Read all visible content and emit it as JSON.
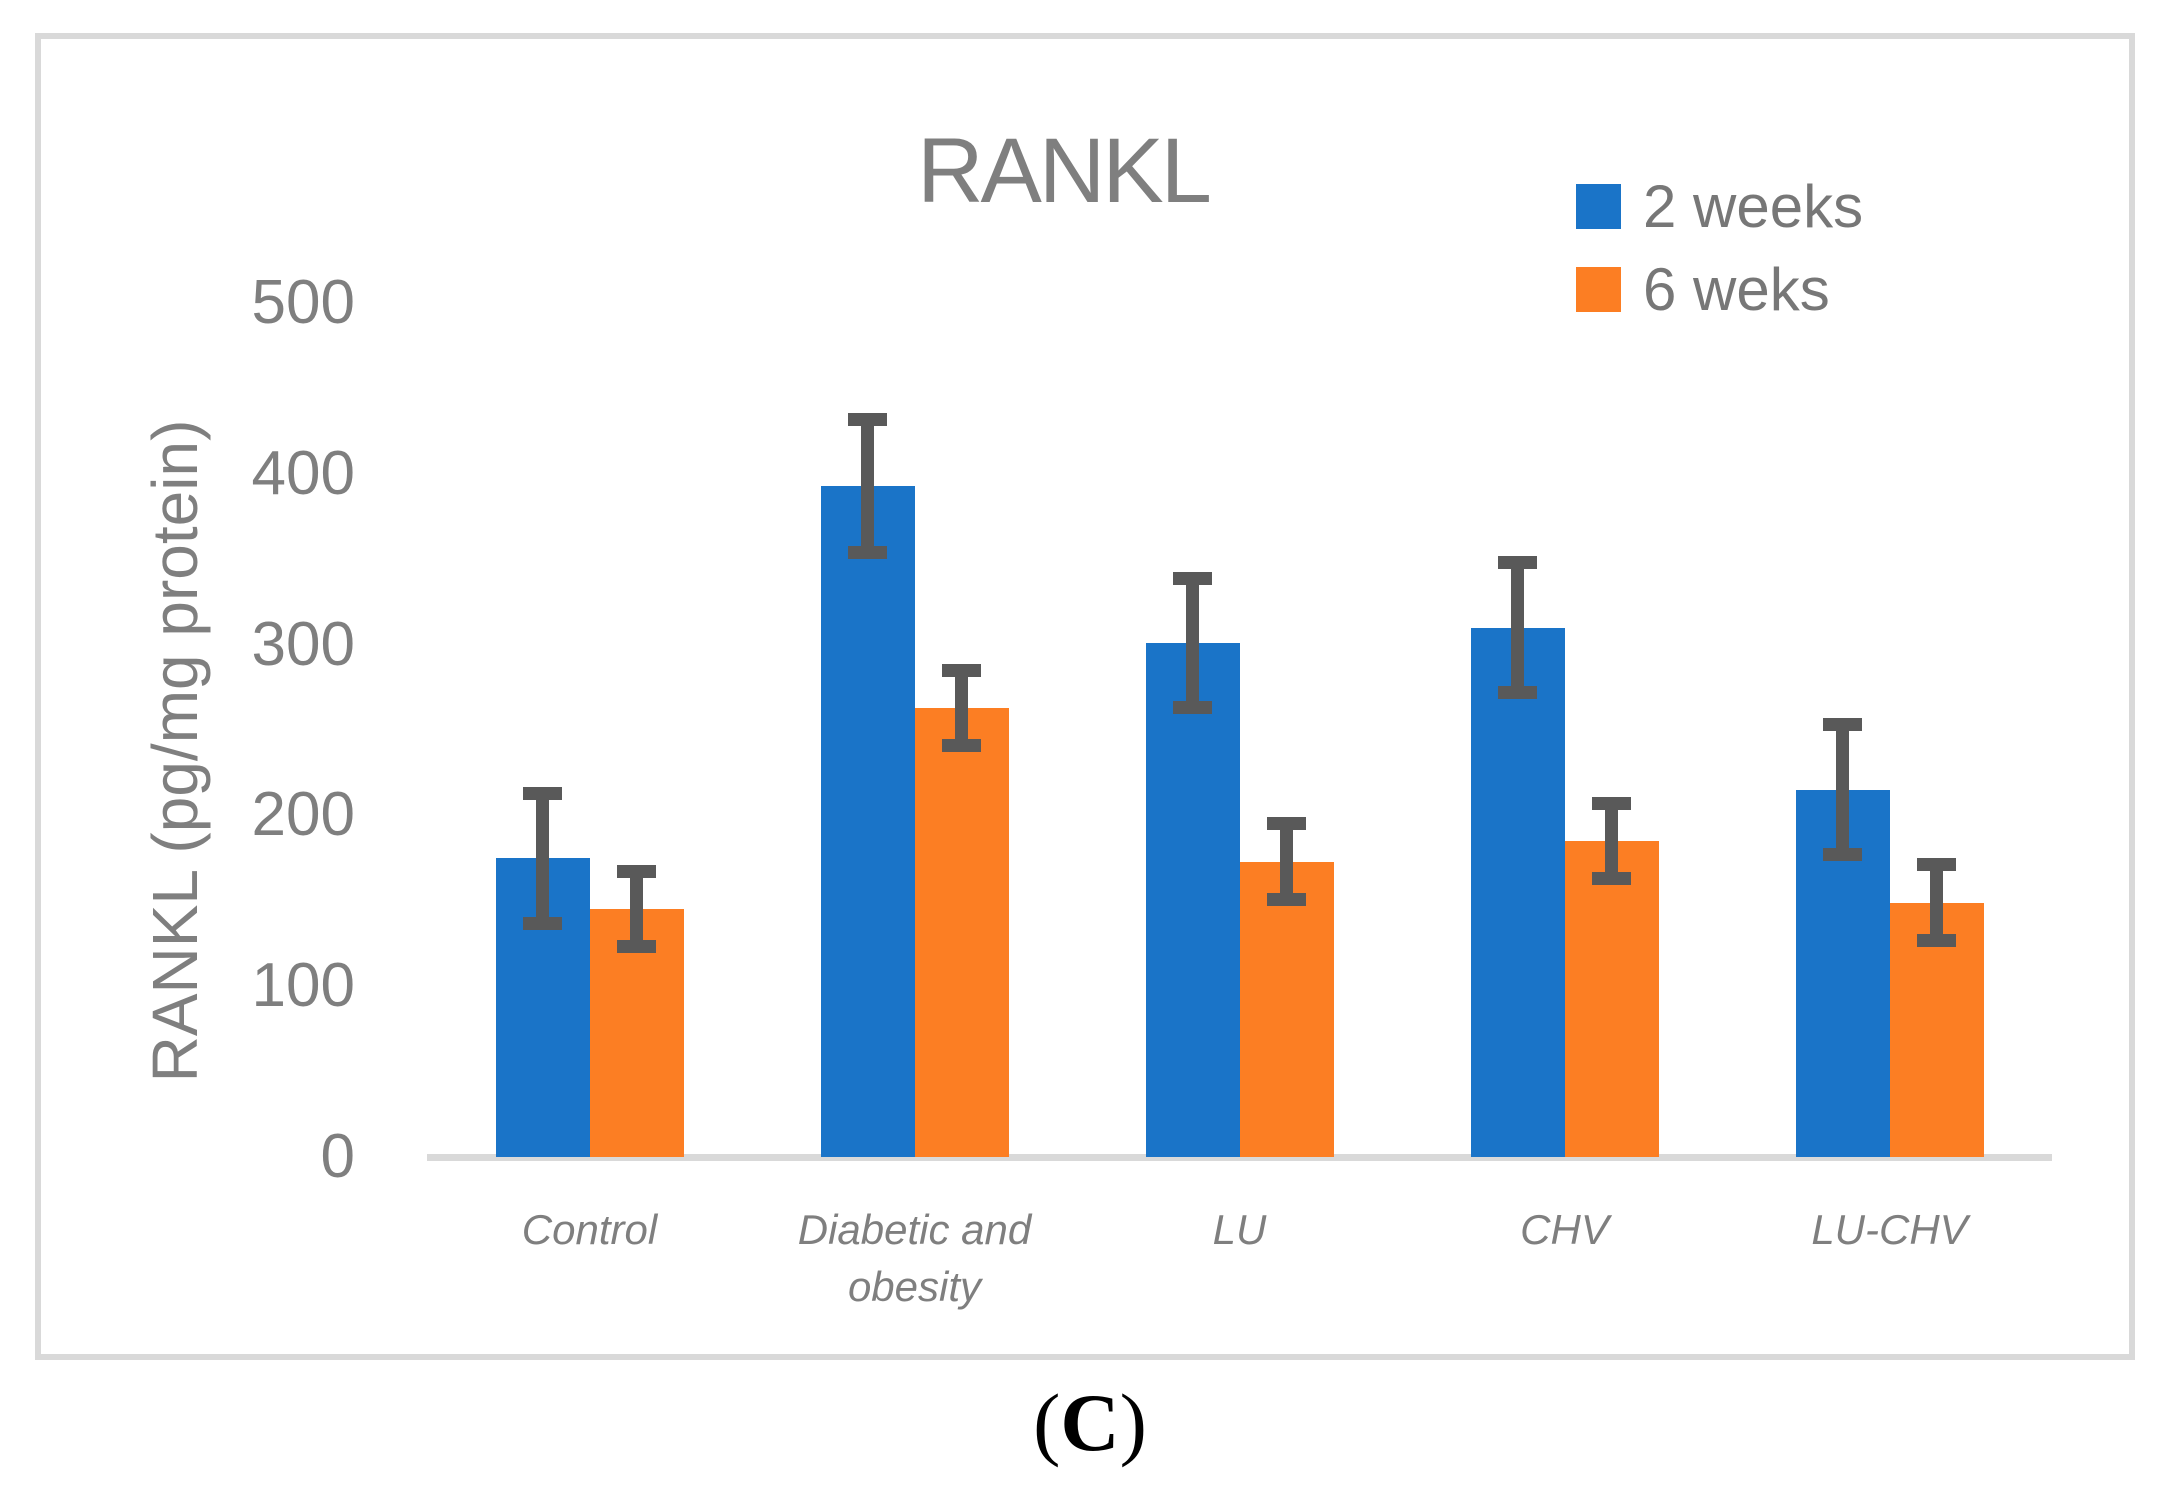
{
  "chart_data": {
    "type": "bar",
    "title": "RANKL",
    "ylabel": "RANKL (pg/mg protein)",
    "xlabel": "",
    "ylim": [
      0,
      500
    ],
    "yticks": [
      "0",
      "100",
      "200",
      "300",
      "400",
      "500"
    ],
    "categories": [
      "Control",
      "Diabetic and obesity",
      "LU",
      "CHV",
      "LU-CHV"
    ],
    "series": [
      {
        "name": "2 weeks",
        "color": "#1A74C8",
        "values": [
          175,
          393,
          301,
          310,
          215
        ],
        "errors": [
          38,
          39,
          38,
          38,
          38
        ]
      },
      {
        "name": "6 weks",
        "color": "#FC7E23",
        "values": [
          145,
          263,
          173,
          185,
          149
        ],
        "errors": [
          22,
          22,
          22,
          22,
          22
        ]
      }
    ],
    "legend_position": "top-right",
    "grid": false,
    "error_bar_color": "#595959",
    "axis_line_color": "#D9D9D9",
    "frame_color": "#D9D9D9",
    "text_color": "#7F7F7F"
  },
  "caption": {
    "text": "(C)",
    "open": "(",
    "letter": "C",
    "close": ")"
  }
}
